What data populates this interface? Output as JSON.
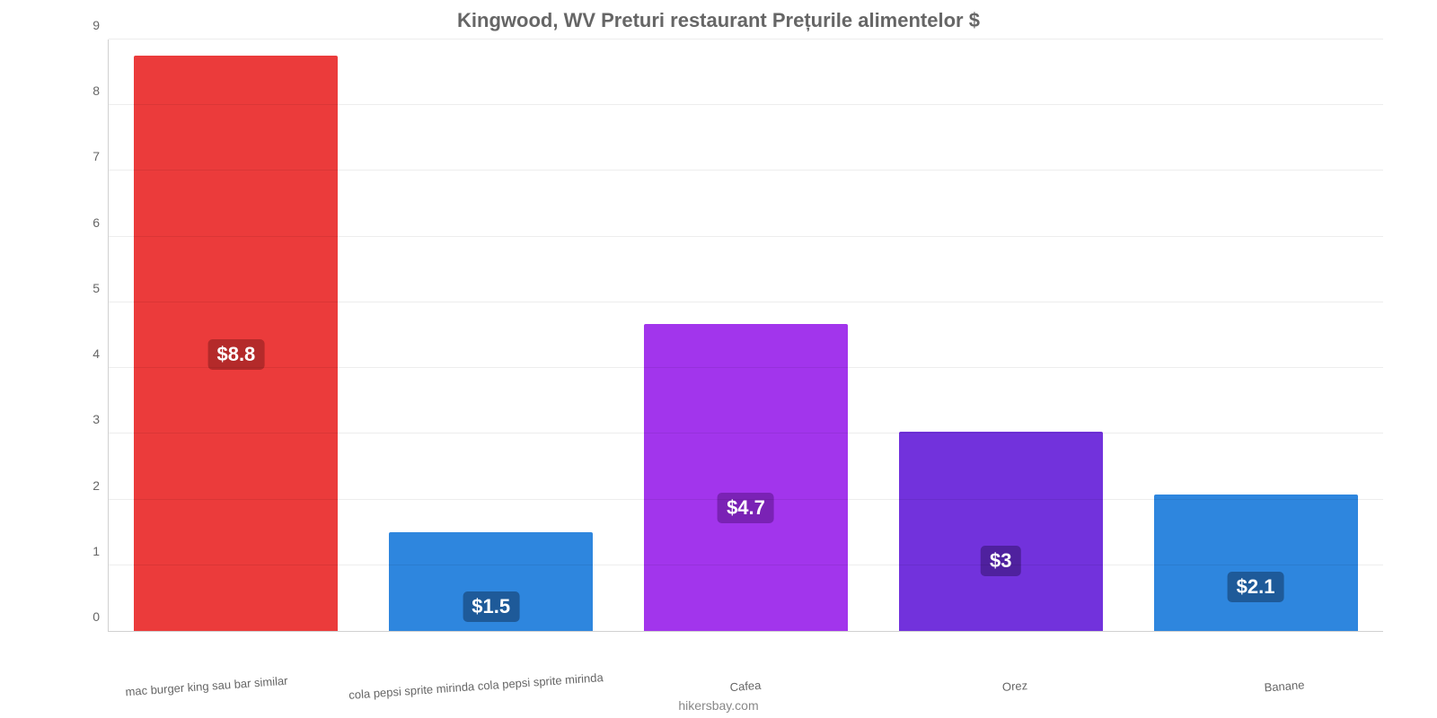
{
  "chart": {
    "type": "bar",
    "title": "Kingwood, WV Preturi restaurant Prețurile alimentelor $",
    "title_color": "#666666",
    "title_fontsize": 22,
    "background_color": "#ffffff",
    "grid_color": "rgba(0,0,0,0.07)",
    "axis_color": "rgba(0,0,0,0.18)",
    "ylim": [
      0,
      9
    ],
    "ytick_step": 1,
    "tick_fontsize": 14,
    "tick_color": "#666666",
    "xlabel_fontsize": 13,
    "xlabel_color": "#666666",
    "xlabel_rotate_deg": -4,
    "bar_width_pct": 80,
    "datalabel_fontsize": 22,
    "categories": [
      "mac burger king sau bar similar",
      "cola pepsi sprite mirinda cola pepsi sprite mirinda",
      "Cafea",
      "Orez",
      "Banane"
    ],
    "values": [
      8.75,
      1.5,
      4.67,
      3.03,
      2.08
    ],
    "value_labels": [
      "$8.8",
      "$1.5",
      "$4.7",
      "$3",
      "$2.1"
    ],
    "bar_colors": [
      "#eb3b3b",
      "#2e86de",
      "#a235ec",
      "#7232dc",
      "#2e86de"
    ],
    "label_bg_colors": [
      "#b42a2a",
      "#1e5a99",
      "#7a22b5",
      "#4f219e",
      "#1e5a99"
    ],
    "label_y_offsets": [
      0.52,
      0.75,
      0.6,
      0.65,
      0.68
    ],
    "attribution": "hikersbay.com",
    "attribution_color": "#888888",
    "attribution_fontsize": 14
  }
}
